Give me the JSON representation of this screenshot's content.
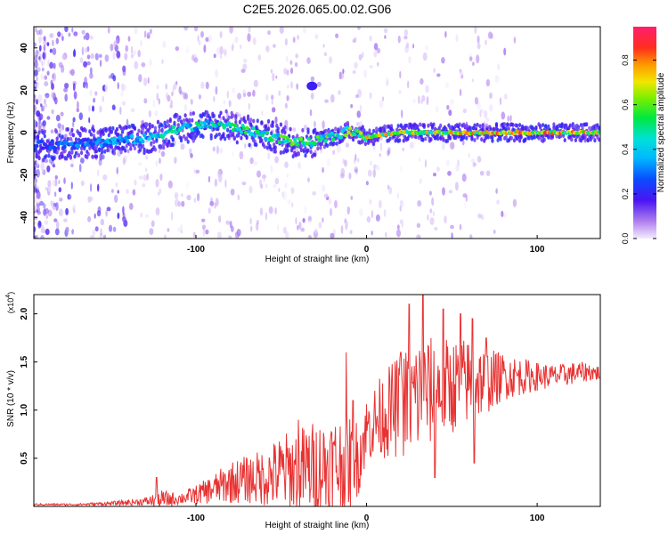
{
  "title": "C2E5.2026.065.00.02.G06",
  "chart_data": [
    {
      "type": "heatmap",
      "name": "spectrogram",
      "xlabel": "Height of straight line (km)",
      "ylabel": "Frequency (Hz)",
      "xlim": [
        -195,
        137
      ],
      "ylim": [
        -50,
        50
      ],
      "x_ticks": [
        -100,
        0,
        100
      ],
      "y_ticks": [
        -40,
        -20,
        0,
        20,
        40
      ],
      "colorbar": {
        "label": "Normalized spectral amplitude",
        "range": [
          0,
          0.95
        ],
        "ticks": [
          0.0,
          0.2,
          0.4,
          0.6,
          0.8
        ],
        "tick_labels": [
          "0.0",
          "0.2",
          "0.4",
          "0.6",
          "0.8"
        ]
      },
      "ridge": {
        "description_x": [
          -190,
          -170,
          -150,
          -130,
          -110,
          -90,
          -80,
          -60,
          -45,
          -35,
          -20,
          -10,
          0,
          20,
          40,
          60,
          80,
          100,
          120,
          135
        ],
        "frequency_hz": [
          -6,
          -5,
          -4,
          -3,
          2,
          4,
          3,
          -1,
          -4,
          -5,
          -2,
          1,
          -2,
          0,
          0,
          0,
          0,
          0,
          0,
          0
        ],
        "amplitude": [
          0.3,
          0.35,
          0.4,
          0.45,
          0.55,
          0.55,
          0.6,
          0.6,
          0.65,
          0.6,
          0.65,
          0.75,
          0.8,
          0.8,
          0.8,
          0.85,
          0.9,
          0.9,
          0.85,
          0.85
        ]
      },
      "artifact": {
        "x_km": -32,
        "frequency_hz": 22
      }
    },
    {
      "type": "line",
      "name": "snr",
      "xlabel": "Height of straight line (km)",
      "ylabel": "SNR (10 * v/v)",
      "y_scale_label": "(x10",
      "y_scale_exponent": "4",
      "xlim": [
        -195,
        137
      ],
      "ylim": [
        0,
        2.2
      ],
      "x_ticks": [
        -100,
        0,
        100
      ],
      "y_ticks": [
        0.5,
        1.0,
        1.5,
        2.0
      ],
      "y_tick_labels": [
        "0.5",
        "1.0",
        "1.5",
        "2.0"
      ],
      "color": "#e83232",
      "envelope": {
        "x": [
          -195,
          -170,
          -150,
          -130,
          -120,
          -110,
          -100,
          -90,
          -80,
          -70,
          -60,
          -50,
          -40,
          -30,
          -20,
          -10,
          -5,
          0,
          10,
          20,
          30,
          40,
          50,
          60,
          70,
          80,
          90,
          100,
          110,
          120,
          130,
          137
        ],
        "mean": [
          0.02,
          0.02,
          0.03,
          0.05,
          0.07,
          0.08,
          0.12,
          0.18,
          0.25,
          0.28,
          0.3,
          0.35,
          0.38,
          0.4,
          0.42,
          0.45,
          0.5,
          0.8,
          0.95,
          1.05,
          1.15,
          1.2,
          1.25,
          1.3,
          1.3,
          1.35,
          1.35,
          1.35,
          1.35,
          1.38,
          1.4,
          1.38
        ],
        "amplitude": [
          0.01,
          0.01,
          0.02,
          0.04,
          0.1,
          0.06,
          0.1,
          0.15,
          0.22,
          0.25,
          0.3,
          0.4,
          0.45,
          0.5,
          0.55,
          0.5,
          0.4,
          0.35,
          0.45,
          0.55,
          0.65,
          0.55,
          0.5,
          0.45,
          0.35,
          0.25,
          0.2,
          0.15,
          0.12,
          0.12,
          0.1,
          0.08
        ]
      },
      "peaks": [
        {
          "x": -123,
          "y": 0.3
        },
        {
          "x": -40,
          "y": 0.9
        },
        {
          "x": -8,
          "y": 1.1
        },
        {
          "x": -12,
          "y": 1.6
        },
        {
          "x": 20,
          "y": 1.6
        },
        {
          "x": 25,
          "y": 2.1
        },
        {
          "x": 33,
          "y": 2.2
        },
        {
          "x": 45,
          "y": 2.05
        },
        {
          "x": 55,
          "y": 2.0
        },
        {
          "x": 62,
          "y": 1.95
        },
        {
          "x": 70,
          "y": 1.75
        },
        {
          "x": 40,
          "y": 0.3
        },
        {
          "x": 63,
          "y": 0.45
        }
      ]
    }
  ]
}
